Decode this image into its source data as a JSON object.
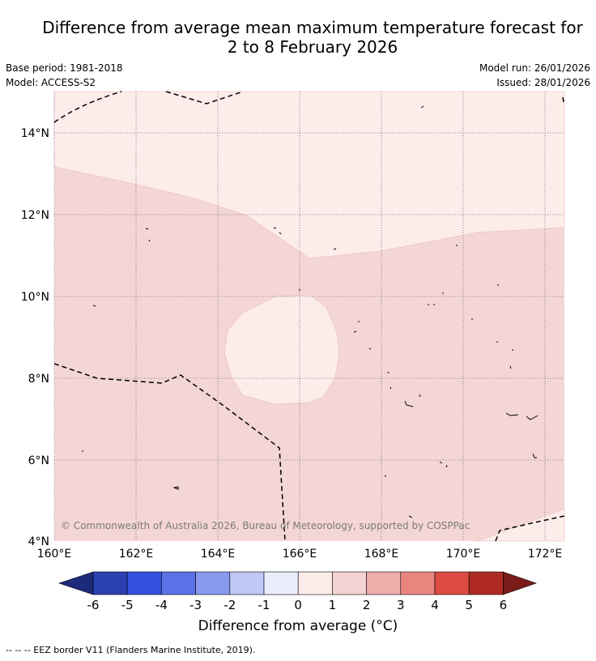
{
  "title_line1": "Difference from average mean maximum temperature forecast for",
  "title_line2": "2 to 8 February 2026",
  "base_period": "Base period: 1981-2018",
  "model": "Model: ACCESS-S2",
  "model_run": "Model run: 26/01/2026",
  "issued": "Issued: 28/01/2026",
  "copyright": "© Commonwealth of Australia 2026, Bureau of Meteorology, supported by COSPPac",
  "lat_labels": [
    "14°N",
    "12°N",
    "10°N",
    "8°N",
    "6°N",
    "4°N"
  ],
  "lon_labels": [
    "160°E",
    "162°E",
    "164°E",
    "166°E",
    "168°E",
    "170°E",
    "172°E"
  ],
  "colorbar": {
    "ticks": [
      "-6",
      "-5",
      "-4",
      "-3",
      "-2",
      "-1",
      "0",
      "1",
      "2",
      "3",
      "4",
      "5",
      "6"
    ],
    "colors": [
      "#1c2a7c",
      "#2a3fb0",
      "#3450e0",
      "#5a72e6",
      "#8899ee",
      "#c0c8f6",
      "#e8ecfb",
      "#fcecea",
      "#f3d3d1",
      "#edaeab",
      "#e8857f",
      "#dc4a42",
      "#b02a25",
      "#7a1b1a"
    ],
    "title": "Difference from average (°C)"
  },
  "legend_note": "--  --  -- EEZ border V11 (Flanders Marine Institute, 2019).",
  "map_fills": {
    "light": "#fcecea",
    "mid": "#f4d6d4"
  }
}
